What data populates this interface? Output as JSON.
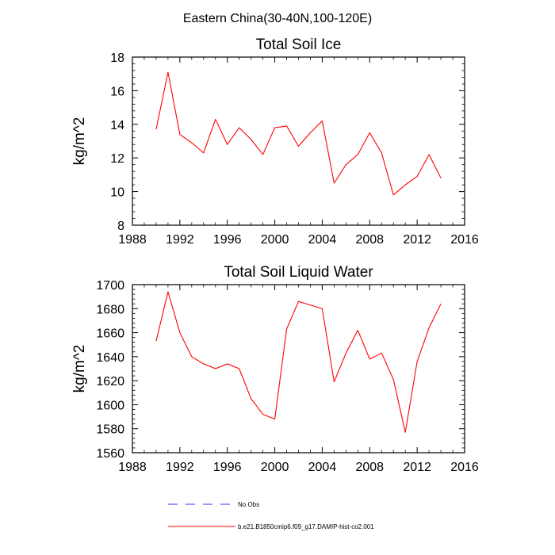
{
  "figure": {
    "suptitle": "Eastern China(30-40N,100-120E)"
  },
  "chart_data": [
    {
      "type": "line",
      "title": "Total Soil Ice",
      "xlabel": "",
      "ylabel": "kg/m^2",
      "xlim": [
        1988,
        2016
      ],
      "ylim": [
        8,
        18
      ],
      "xticks": [
        1988,
        1992,
        1996,
        2000,
        2004,
        2008,
        2012,
        2016
      ],
      "yticks": [
        8,
        10,
        12,
        14,
        16,
        18
      ],
      "grid": false,
      "series": [
        {
          "name": "b.e21.B1850cmip6.f09_g17.DAMIP-hist-co2.001",
          "color": "#ff0000",
          "x": [
            1990,
            1991,
            1992,
            1993,
            1994,
            1995,
            1996,
            1997,
            1998,
            1999,
            2000,
            2001,
            2002,
            2003,
            2004,
            2005,
            2006,
            2007,
            2008,
            2009,
            2010,
            2011,
            2012,
            2013,
            2014
          ],
          "values": [
            13.7,
            17.1,
            13.4,
            12.9,
            12.3,
            14.3,
            12.8,
            13.8,
            13.1,
            12.2,
            13.8,
            13.9,
            12.7,
            13.5,
            14.2,
            10.5,
            11.6,
            12.2,
            13.5,
            12.3,
            9.8,
            10.4,
            10.9,
            12.2,
            10.8
          ]
        }
      ]
    },
    {
      "type": "line",
      "title": "Total Soil Liquid Water",
      "xlabel": "",
      "ylabel": "kg/m^2",
      "xlim": [
        1988,
        2016
      ],
      "ylim": [
        1560,
        1700
      ],
      "xticks": [
        1988,
        1992,
        1996,
        2000,
        2004,
        2008,
        2012,
        2016
      ],
      "yticks": [
        1560,
        1580,
        1600,
        1620,
        1640,
        1660,
        1680,
        1700
      ],
      "grid": false,
      "series": [
        {
          "name": "b.e21.B1850cmip6.f09_g17.DAMIP-hist-co2.001",
          "color": "#ff0000",
          "x": [
            1990,
            1991,
            1992,
            1993,
            1994,
            1995,
            1996,
            1997,
            1998,
            1999,
            2000,
            2001,
            2002,
            2003,
            2004,
            2005,
            2006,
            2007,
            2008,
            2009,
            2010,
            2011,
            2012,
            2013,
            2014
          ],
          "values": [
            1653,
            1694,
            1660,
            1640,
            1634,
            1630,
            1634,
            1630,
            1605,
            1592,
            1588,
            1663,
            1686,
            1683,
            1680,
            1619,
            1643,
            1662,
            1638,
            1643,
            1621,
            1577,
            1636,
            1664,
            1684
          ]
        }
      ]
    }
  ],
  "legend": {
    "placement": "bottom",
    "items": [
      {
        "label": "No Obs",
        "color": "#3333ff",
        "style": "dashed"
      },
      {
        "label": "b.e21.B1850cmip6.f09_g17.DAMIP-hist-co2.001",
        "color": "#ff0000",
        "style": "solid"
      }
    ]
  }
}
